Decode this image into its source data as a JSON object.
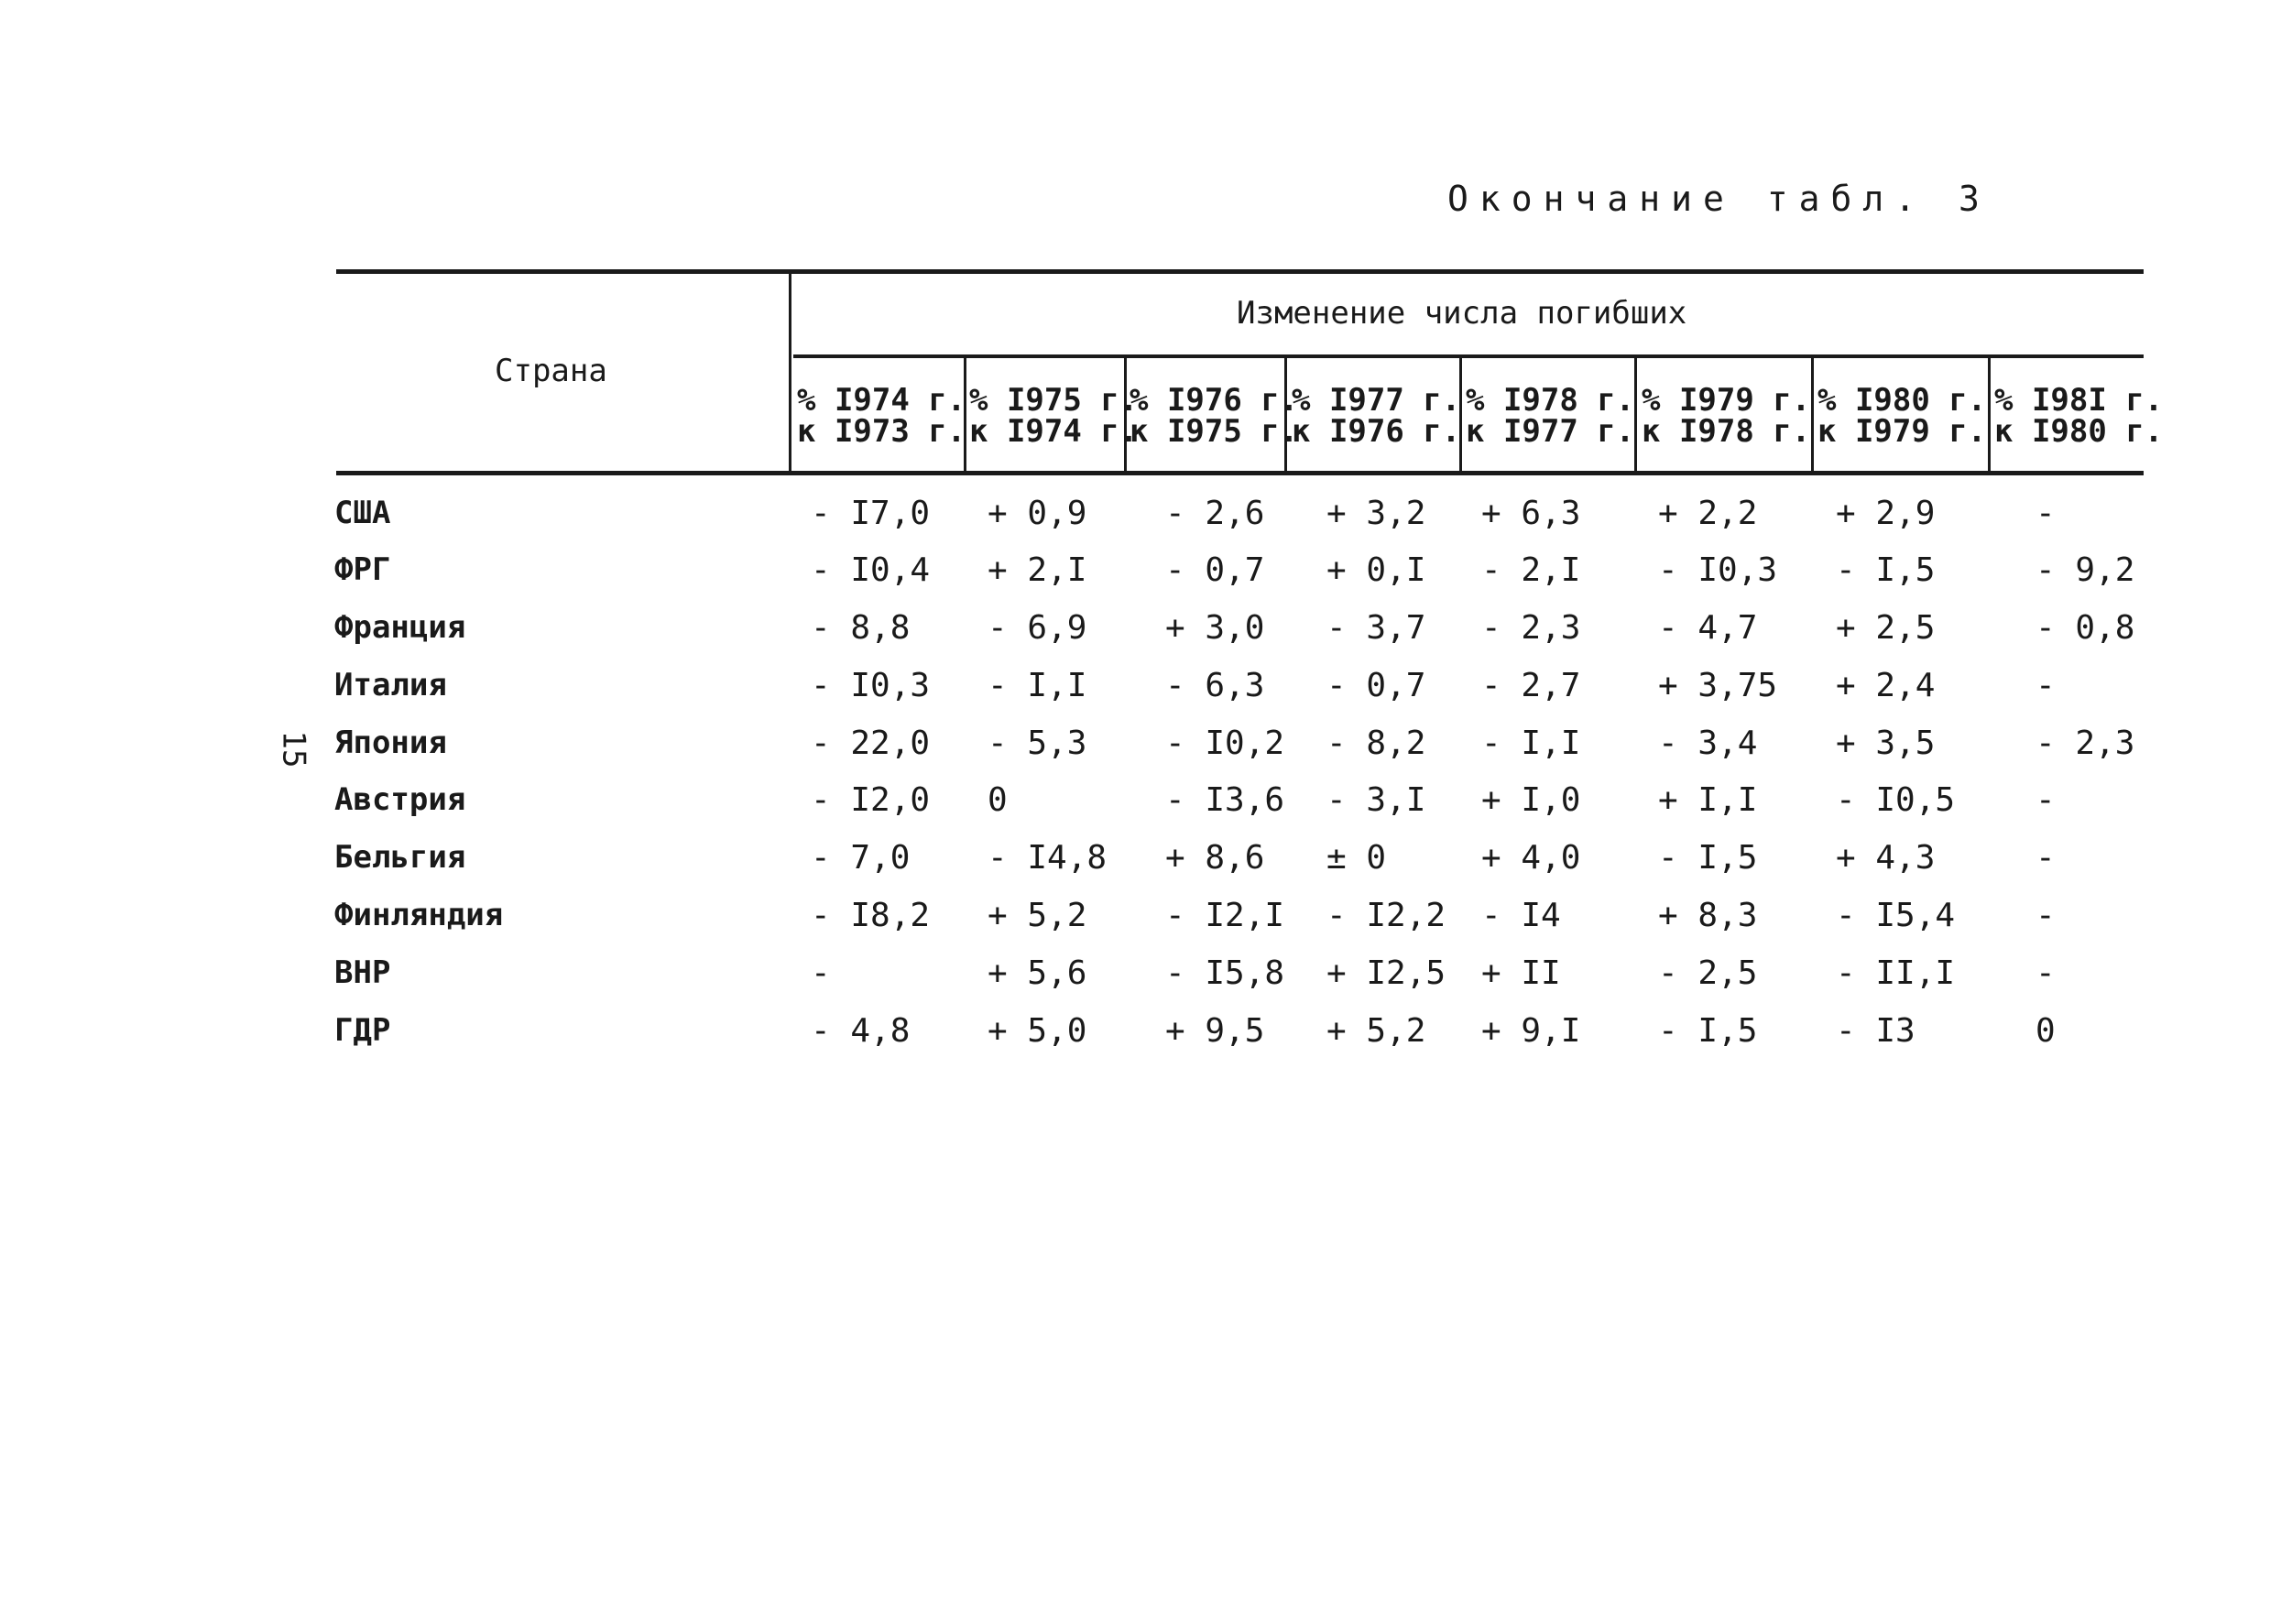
{
  "caption": "Окончание табл. 3",
  "page_number": "15",
  "table": {
    "country_header": "Страна",
    "group_header": "Изменение числа погибших",
    "columns": [
      {
        "line1": "% I974 г.",
        "line2": "к I973 г."
      },
      {
        "line1": "% I975 г.",
        "line2": "к I974 г."
      },
      {
        "line1": "% I976 г.",
        "line2": "к I975 г."
      },
      {
        "line1": "% I977 г.",
        "line2": "к I976 г."
      },
      {
        "line1": "% I978 г.",
        "line2": "к I977 г."
      },
      {
        "line1": "% I979 г.",
        "line2": "к I978 г."
      },
      {
        "line1": "% I980 г.",
        "line2": "к I979 г."
      },
      {
        "line1": "% I98I г.",
        "line2": "к I980 г."
      }
    ],
    "rows": [
      {
        "country": "США",
        "values": [
          "- I7,0",
          "+ 0,9",
          "- 2,6",
          "+ 3,2",
          "+ 6,3",
          "+ 2,2",
          "+ 2,9",
          "-"
        ]
      },
      {
        "country": "ФРГ",
        "values": [
          "- I0,4",
          "+ 2,I",
          "- 0,7",
          "+ 0,I",
          "- 2,I",
          "- I0,3",
          "- I,5",
          "- 9,2"
        ]
      },
      {
        "country": "Франция",
        "values": [
          "- 8,8",
          "- 6,9",
          "+ 3,0",
          "- 3,7",
          "- 2,3",
          "- 4,7",
          "+ 2,5",
          "- 0,8"
        ]
      },
      {
        "country": "Италия",
        "values": [
          "- I0,3",
          "- I,I",
          "- 6,3",
          "- 0,7",
          "- 2,7",
          "+ 3,75",
          "+ 2,4",
          "-"
        ]
      },
      {
        "country": "Япония",
        "values": [
          "- 22,0",
          "- 5,3",
          "- I0,2",
          "- 8,2",
          "- I,I",
          "- 3,4",
          "+ 3,5",
          "- 2,3"
        ]
      },
      {
        "country": "Австрия",
        "values": [
          "- I2,0",
          "0",
          "- I3,6",
          "- 3,I",
          "+ I,0",
          "+ I,I",
          "- I0,5",
          "-"
        ]
      },
      {
        "country": "Бельгия",
        "values": [
          "- 7,0",
          "- I4,8",
          "+ 8,6",
          "± 0",
          "+ 4,0",
          "- I,5",
          "+ 4,3",
          "-"
        ]
      },
      {
        "country": "Финляндия",
        "values": [
          "- I8,2",
          "+ 5,2",
          "- I2,I",
          "- I2,2",
          "- I4",
          "+ 8,3",
          "- I5,4",
          "-"
        ]
      },
      {
        "country": "ВНР",
        "values": [
          "-",
          "+ 5,6",
          "- I5,8",
          "+ I2,5",
          "+ II",
          "- 2,5",
          "- II,I",
          "-"
        ]
      },
      {
        "country": "ГДР",
        "values": [
          "- 4,8",
          "+ 5,0",
          "+ 9,5",
          "+ 5,2",
          "+ 9,I",
          "- I,5",
          "- I3",
          "0"
        ]
      }
    ]
  }
}
